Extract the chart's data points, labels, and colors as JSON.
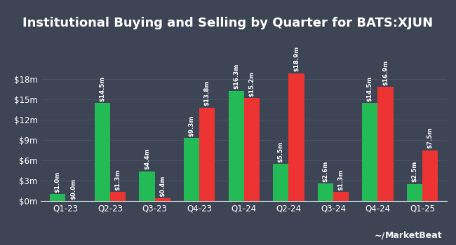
{
  "title": "Institutional Buying and Selling by Quarter for BATS:XJUN",
  "quarters": [
    "Q1-23",
    "Q2-23",
    "Q3-23",
    "Q4-23",
    "Q1-24",
    "Q2-24",
    "Q3-24",
    "Q4-24",
    "Q1-25"
  ],
  "inflows": [
    1.0,
    14.5,
    4.4,
    9.3,
    16.3,
    5.5,
    2.6,
    14.5,
    2.5
  ],
  "outflows": [
    0.0,
    1.3,
    0.4,
    13.8,
    15.2,
    18.9,
    1.3,
    16.9,
    7.5
  ],
  "inflow_labels": [
    "$1.0m",
    "$14.5m",
    "$4.4m",
    "$9.3m",
    "$16.3m",
    "$5.5m",
    "$2.6m",
    "$14.5m",
    "$2.5m"
  ],
  "outflow_labels": [
    "$0.0m",
    "$1.3m",
    "$0.4m",
    "$13.8m",
    "$15.2m",
    "$18.9m",
    "$1.3m",
    "$16.9m",
    "$7.5m"
  ],
  "inflow_color": "#22bb55",
  "outflow_color": "#ee3333",
  "background_color": "#3d4555",
  "text_color": "#ffffff",
  "grid_color": "#4a5265",
  "yticks": [
    0,
    3,
    6,
    9,
    12,
    15,
    18
  ],
  "ytick_labels": [
    "$0m",
    "$3m",
    "$6m",
    "$9m",
    "$12m",
    "$15m",
    "$18m"
  ],
  "ylim": [
    0,
    22.5
  ],
  "bar_width": 0.35,
  "title_fontsize": 13,
  "label_fontsize": 6.2,
  "tick_fontsize": 8.5,
  "legend_fontsize": 8.5,
  "marketbeat_text": "MarketBeat"
}
